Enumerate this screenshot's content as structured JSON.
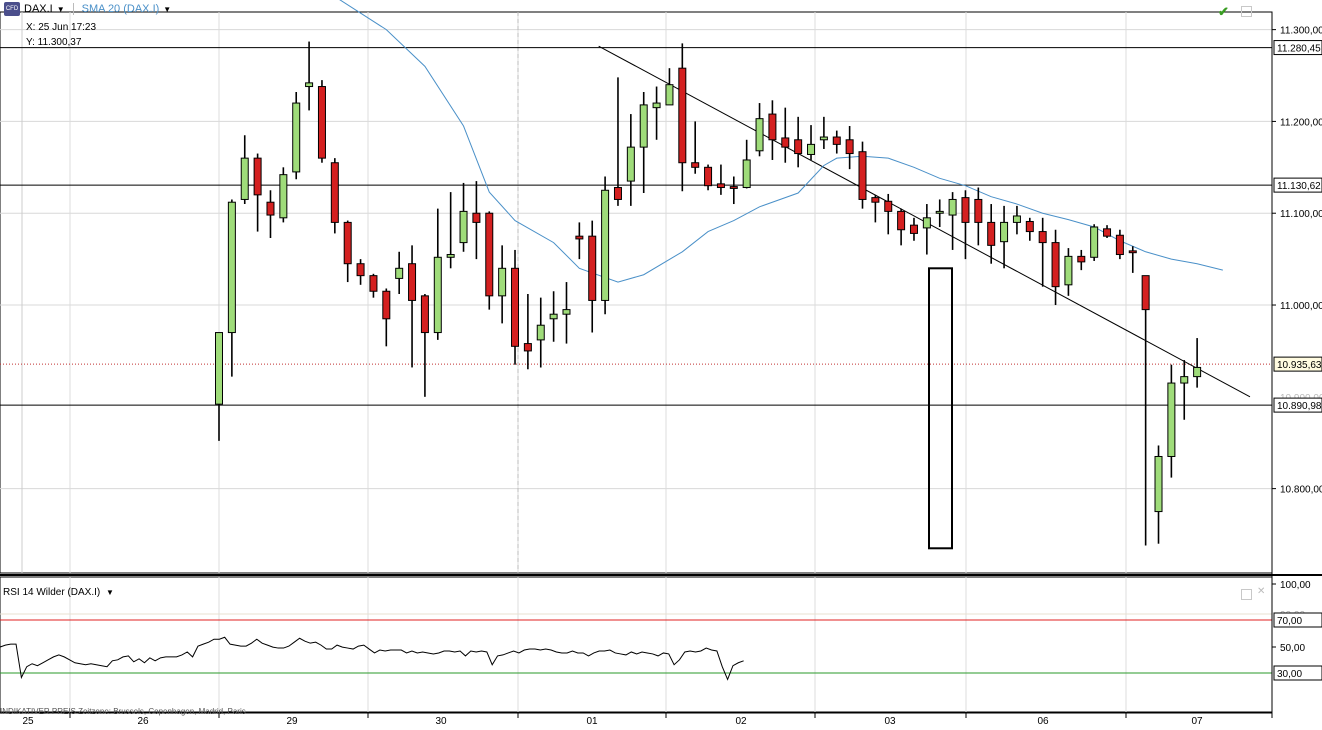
{
  "header": {
    "symbol": "DAX.I",
    "indicator": "SMA 20 (DAX.I)",
    "crosshair_x": "X: 25 Jun 17:23",
    "crosshair_y": "Y: 11.300,37",
    "logo_text": "CFD"
  },
  "rsi_panel": {
    "title": "RSI 14 Wilder (DAX.I)"
  },
  "footer": {
    "indicative_price": "INDIKATIVER PREIS   Zeitzone: Brussels, Copenhagen, Madrid, Paris"
  },
  "colors": {
    "up": "#9fdc7a",
    "down": "#d42020",
    "sma": "#4a90c8",
    "rsi_upper": "#e02020",
    "rsi_lower": "#2a9a2a"
  },
  "price_axis": {
    "ticks": [
      "11.300,00",
      "11.200,00",
      "11.100,00",
      "11.000,00",
      "10.800,00"
    ],
    "tick_values": [
      11300,
      11200,
      11100,
      11000,
      10800
    ],
    "markers": [
      {
        "label": "11.280,45",
        "value": 11280.45
      },
      {
        "label": "11.130,62",
        "value": 11130.62
      },
      {
        "label": "10.935,63",
        "value": 10935.63
      },
      {
        "label": "10.890,98",
        "value": 10890.98
      }
    ],
    "hidden_tick": "10.900,00"
  },
  "rsi_axis": {
    "ticks": [
      "100,00",
      "50,00"
    ],
    "tick_values": [
      100,
      50
    ],
    "markers": [
      {
        "label": "70,00",
        "value": 70
      },
      {
        "label": "30,00",
        "value": 30
      }
    ],
    "partial_tick": "90,00"
  },
  "chart_data": {
    "type": "candlestick",
    "x_labels": [
      "25",
      "26",
      "29",
      "30",
      "01",
      "02",
      "03",
      "06",
      "07"
    ],
    "ylim": [
      10730,
      11310
    ],
    "horizontal_levels": [
      11280.45,
      11130.62,
      10890.98
    ],
    "current_price": 10935.63,
    "trendline": [
      [
        0,
        11282
      ],
      [
        52,
        10913
      ]
    ],
    "candles": [
      [
        0,
        10892,
        10970,
        10965,
        10852
      ],
      [
        1,
        10970,
        11112,
        11115,
        10922
      ],
      [
        2,
        11115,
        11160,
        11185,
        11110
      ],
      [
        3,
        11160,
        11120,
        11165,
        11080
      ],
      [
        4,
        11112,
        11098,
        11125,
        11073
      ],
      [
        5,
        11095,
        11142,
        11150,
        11090
      ],
      [
        6,
        11145,
        11220,
        11232,
        11137
      ],
      [
        7,
        11238,
        11242,
        11287,
        11212
      ],
      [
        8,
        11238,
        11160,
        11245,
        11155
      ],
      [
        9,
        11155,
        11090,
        11160,
        11078
      ],
      [
        10,
        11090,
        11045,
        11092,
        11025
      ],
      [
        11,
        11045,
        11032,
        11050,
        11022
      ],
      [
        12,
        11032,
        11015,
        11034,
        11008
      ],
      [
        13,
        11015,
        10985,
        11018,
        10955
      ],
      [
        14,
        11029,
        11040,
        11058,
        11012
      ],
      [
        15,
        11045,
        11005,
        11065,
        10932
      ],
      [
        16,
        11010,
        10970,
        11012,
        10900
      ],
      [
        17,
        10970,
        11052,
        11105,
        10962
      ],
      [
        18,
        11052,
        11055,
        11123,
        11040
      ],
      [
        19,
        11068,
        11102,
        11133,
        11058
      ],
      [
        20,
        11100,
        11090,
        11135,
        11050
      ],
      [
        21,
        11100,
        11010,
        11102,
        10995
      ],
      [
        22,
        11010,
        11040,
        11065,
        10980
      ],
      [
        23,
        11040,
        10955,
        11060,
        10935
      ],
      [
        24,
        10958,
        10950,
        11012,
        10930
      ],
      [
        25,
        10962,
        10978,
        11008,
        10932
      ],
      [
        26,
        10985,
        10990,
        11015,
        10960
      ],
      [
        27,
        10990,
        10995,
        11025,
        10958
      ],
      [
        28,
        11075,
        11072,
        11090,
        11050
      ],
      [
        29,
        11075,
        11005,
        11092,
        10970
      ],
      [
        30,
        11005,
        11125,
        11140,
        10990
      ],
      [
        31,
        11128,
        11115,
        11248,
        11108
      ],
      [
        32,
        11135,
        11172,
        11208,
        11108
      ],
      [
        33,
        11172,
        11218,
        11232,
        11122
      ],
      [
        34,
        11215,
        11220,
        11238,
        11180
      ],
      [
        35,
        11218,
        11240,
        11258,
        11225
      ],
      [
        36,
        11258,
        11155,
        11285,
        11124
      ],
      [
        37,
        11155,
        11150,
        11200,
        11143
      ],
      [
        38,
        11150,
        11130,
        11153,
        11125
      ],
      [
        39,
        11132,
        11128,
        11153,
        11120
      ],
      [
        40,
        11129,
        11127,
        11140,
        11110
      ],
      [
        41,
        11128,
        11158,
        11180,
        11127
      ],
      [
        42,
        11168,
        11203,
        11220,
        11162
      ],
      [
        43,
        11208,
        11180,
        11223,
        11158
      ],
      [
        44,
        11182,
        11172,
        11215,
        11155
      ],
      [
        45,
        11180,
        11165,
        11205,
        11150
      ],
      [
        46,
        11164,
        11175,
        11196,
        11158
      ],
      [
        47,
        11180,
        11183,
        11205,
        11170
      ],
      [
        48,
        11183,
        11175,
        11190,
        11165
      ],
      [
        49,
        11180,
        11165,
        11195,
        11148
      ],
      [
        50,
        11167,
        11115,
        11178,
        11105
      ],
      [
        51,
        11117,
        11112,
        11120,
        11090
      ],
      [
        52,
        11113,
        11102,
        11121,
        11077
      ],
      [
        53,
        11102,
        11082,
        11105,
        11065
      ],
      [
        54,
        11087,
        11078,
        11095,
        11070
      ],
      [
        55,
        11084,
        11095,
        11110,
        11055
      ],
      [
        56,
        11100,
        11102,
        11115,
        11085
      ],
      [
        57,
        11098,
        11115,
        11123,
        11060
      ],
      [
        58,
        11117,
        11090,
        11125,
        11050
      ],
      [
        59,
        11115,
        11090,
        11128,
        11065
      ],
      [
        60,
        11090,
        11065,
        11110,
        11045
      ],
      [
        61,
        11069,
        11090,
        11108,
        11040
      ],
      [
        62,
        11090,
        11097,
        11108,
        11077
      ],
      [
        63,
        11091,
        11080,
        11095,
        11070
      ],
      [
        64,
        11080,
        11068,
        11095,
        11020
      ],
      [
        65,
        11068,
        11020,
        11082,
        11000
      ],
      [
        66,
        11022,
        11053,
        11062,
        11010
      ],
      [
        67,
        11053,
        11047,
        11060,
        11038
      ],
      [
        68,
        11052,
        11085,
        11088,
        11048
      ],
      [
        69,
        11083,
        11075,
        11087,
        11073
      ],
      [
        70,
        11076,
        11055,
        11082,
        11050
      ],
      [
        71,
        11059,
        11057,
        11064,
        11035
      ],
      [
        72,
        11032,
        10995,
        11015,
        10738
      ],
      [
        73,
        10775,
        10835,
        10847,
        10740
      ],
      [
        74,
        10835,
        10915,
        10935,
        10812
      ],
      [
        75,
        10915,
        10922,
        10940,
        10875
      ],
      [
        76,
        10922,
        10932,
        10964,
        10910
      ]
    ],
    "sma20": [
      [
        8,
        11345
      ],
      [
        13,
        11300
      ],
      [
        16,
        11260
      ],
      [
        19,
        11195
      ],
      [
        21,
        11123
      ],
      [
        23,
        11092
      ],
      [
        26,
        11068
      ],
      [
        28,
        11040
      ],
      [
        31,
        11025
      ],
      [
        33,
        11033
      ],
      [
        36,
        11058
      ],
      [
        38,
        11080
      ],
      [
        40,
        11092
      ],
      [
        42,
        11107
      ],
      [
        45,
        11122
      ],
      [
        47,
        11152
      ],
      [
        48,
        11160
      ],
      [
        50,
        11162
      ],
      [
        52,
        11160
      ],
      [
        54,
        11150
      ],
      [
        56,
        11138
      ],
      [
        58,
        11130
      ],
      [
        60,
        11118
      ],
      [
        62,
        11110
      ],
      [
        64,
        11100
      ],
      [
        66,
        11093
      ],
      [
        68,
        11085
      ],
      [
        70,
        11070
      ],
      [
        72,
        11058
      ],
      [
        74,
        11050
      ],
      [
        76,
        11045
      ],
      [
        78,
        11038
      ]
    ],
    "rsi": [
      [
        -17,
        50
      ],
      [
        -16,
        52
      ],
      [
        -15,
        53
      ],
      [
        -14,
        51
      ],
      [
        -13,
        49
      ],
      [
        -12,
        46
      ],
      [
        -11,
        47
      ],
      [
        -10,
        43
      ],
      [
        -9,
        46
      ],
      [
        -8,
        44
      ],
      [
        -7,
        44
      ],
      [
        -6,
        54
      ],
      [
        -5,
        56
      ],
      [
        -4,
        58
      ],
      [
        -3,
        64
      ],
      [
        -2,
        56
      ],
      [
        -1,
        57
      ],
      [
        0,
        54
      ],
      [
        1,
        56
      ],
      [
        2,
        57
      ],
      [
        3,
        57
      ],
      [
        4,
        23
      ],
      [
        5,
        34
      ],
      [
        6,
        37
      ],
      [
        7,
        35
      ],
      [
        8,
        38
      ],
      [
        9,
        41
      ],
      [
        10,
        44
      ],
      [
        11,
        46
      ],
      [
        12,
        44
      ],
      [
        13,
        41
      ],
      [
        14,
        38
      ],
      [
        15,
        37
      ],
      [
        16,
        36
      ],
      [
        17,
        37
      ],
      [
        18,
        36
      ],
      [
        19,
        35
      ],
      [
        20,
        34
      ],
      [
        21,
        40
      ],
      [
        22,
        41
      ],
      [
        23,
        44
      ],
      [
        24,
        45
      ],
      [
        25,
        39
      ],
      [
        26,
        42
      ],
      [
        27,
        38
      ],
      [
        28,
        43
      ],
      [
        29,
        40
      ],
      [
        30,
        43
      ],
      [
        31,
        44
      ],
      [
        32,
        44
      ],
      [
        33,
        44
      ],
      [
        34,
        46
      ],
      [
        35,
        49
      ],
      [
        36,
        44
      ],
      [
        37,
        55
      ],
      [
        38,
        57
      ],
      [
        39,
        59
      ],
      [
        40,
        62
      ],
      [
        41,
        62
      ],
      [
        42,
        64
      ],
      [
        43,
        57
      ],
      [
        44,
        56
      ],
      [
        45,
        55
      ],
      [
        46,
        55
      ],
      [
        47,
        58
      ],
      [
        48,
        62
      ],
      [
        49,
        58
      ],
      [
        50,
        56
      ],
      [
        51,
        54
      ],
      [
        52,
        53
      ],
      [
        53,
        53
      ],
      [
        54,
        55
      ],
      [
        55,
        59
      ],
      [
        56,
        63
      ],
      [
        57,
        60
      ],
      [
        58,
        58
      ],
      [
        59,
        59
      ],
      [
        60,
        56
      ],
      [
        61,
        52
      ],
      [
        62,
        52
      ],
      [
        63,
        56
      ],
      [
        64,
        54
      ],
      [
        65,
        53
      ],
      [
        66,
        52
      ],
      [
        67,
        55
      ],
      [
        68,
        56
      ],
      [
        69,
        52
      ],
      [
        70,
        48
      ],
      [
        71,
        51
      ],
      [
        72,
        50
      ],
      [
        73,
        51
      ],
      [
        74,
        51
      ],
      [
        75,
        51
      ],
      [
        76,
        48
      ],
      [
        77,
        50
      ],
      [
        78,
        48
      ],
      [
        79,
        49
      ],
      [
        80,
        48
      ],
      [
        81,
        47
      ],
      [
        82,
        48
      ],
      [
        83,
        50
      ],
      [
        84,
        50
      ],
      [
        85,
        49
      ],
      [
        86,
        50
      ],
      [
        87,
        45
      ],
      [
        88,
        50
      ],
      [
        89,
        49
      ],
      [
        90,
        50
      ],
      [
        91,
        49
      ],
      [
        92,
        36
      ],
      [
        93,
        45
      ],
      [
        94,
        46
      ],
      [
        95,
        48
      ],
      [
        96,
        50
      ],
      [
        97,
        48
      ],
      [
        98,
        51
      ],
      [
        99,
        52
      ],
      [
        100,
        52
      ],
      [
        101,
        51
      ],
      [
        102,
        52
      ],
      [
        103,
        51
      ],
      [
        104,
        49
      ],
      [
        105,
        48
      ],
      [
        106,
        48
      ],
      [
        107,
        50
      ],
      [
        108,
        48
      ],
      [
        109,
        48
      ],
      [
        110,
        45
      ],
      [
        111,
        48
      ],
      [
        112,
        50
      ],
      [
        113,
        50
      ],
      [
        114,
        51
      ],
      [
        115,
        48
      ],
      [
        116,
        47
      ],
      [
        117,
        46
      ],
      [
        118,
        49
      ],
      [
        119,
        47
      ],
      [
        120,
        49
      ],
      [
        121,
        48
      ],
      [
        122,
        47
      ],
      [
        123,
        45
      ],
      [
        124,
        48
      ],
      [
        125,
        47
      ],
      [
        126,
        36
      ],
      [
        127,
        41
      ],
      [
        128,
        49
      ],
      [
        129,
        50
      ],
      [
        130,
        49
      ],
      [
        131,
        50
      ],
      [
        132,
        53
      ],
      [
        133,
        51
      ],
      [
        134,
        50
      ],
      [
        135,
        34
      ],
      [
        136,
        21
      ],
      [
        137,
        35
      ],
      [
        138,
        38
      ],
      [
        139,
        40
      ]
    ]
  }
}
